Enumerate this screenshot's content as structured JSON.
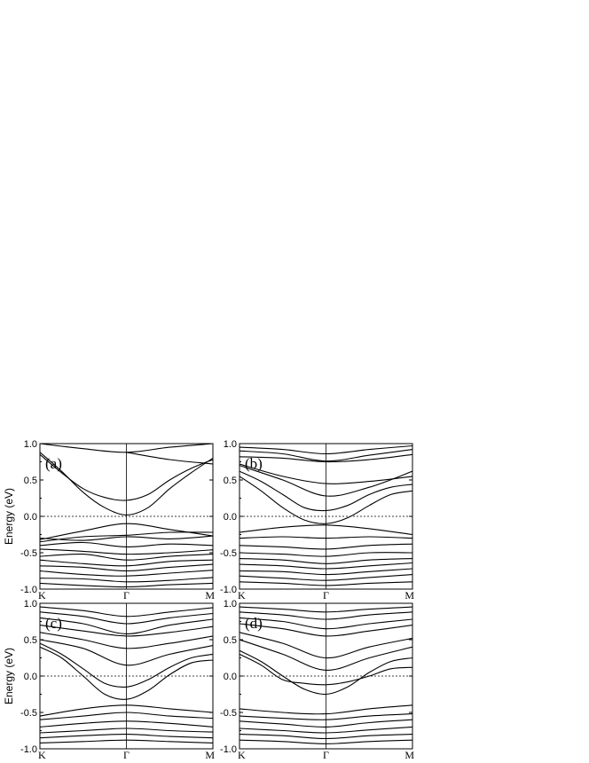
{
  "chart_data": [
    {
      "type": "line",
      "panel_label": "(a)",
      "ylabel": "Energy (eV)",
      "ylim": [
        -1.0,
        1.0
      ],
      "yticks": [
        "-1.0",
        "-0.5",
        "0.0",
        "0.5",
        "1.0"
      ],
      "xticks": [
        "K",
        "Γ",
        "M"
      ],
      "fermi_level": 0.0,
      "bands": [
        {
          "x": [
            0,
            0.25,
            0.5,
            0.75,
            1.0,
            1.25,
            1.5,
            1.75,
            2.0
          ],
          "y": [
            0.85,
            0.6,
            0.38,
            0.26,
            0.22,
            0.3,
            0.5,
            0.66,
            0.78
          ]
        },
        {
          "x": [
            0,
            0.25,
            0.5,
            0.75,
            1.0,
            1.25,
            1.5,
            1.75,
            2.0
          ],
          "y": [
            0.88,
            0.62,
            0.33,
            0.12,
            0.02,
            0.12,
            0.38,
            0.6,
            0.8
          ]
        },
        {
          "x": [
            0,
            0.5,
            1.0,
            1.5,
            2.0
          ],
          "y": [
            1.0,
            0.93,
            0.88,
            0.95,
            1.0
          ]
        },
        {
          "x": [
            1.0,
            1.5,
            2.0
          ],
          "y": [
            0.88,
            0.78,
            0.72
          ]
        },
        {
          "x": [
            0,
            0.5,
            1.0,
            1.5,
            2.0
          ],
          "y": [
            -0.32,
            -0.2,
            -0.1,
            -0.18,
            -0.27
          ]
        },
        {
          "x": [
            0,
            0.5,
            1.0,
            1.5,
            2.0
          ],
          "y": [
            -0.35,
            -0.28,
            -0.26,
            -0.22,
            -0.22
          ]
        },
        {
          "x": [
            0,
            0.5,
            1.0,
            1.5,
            2.0
          ],
          "y": [
            -0.3,
            -0.33,
            -0.28,
            -0.31,
            -0.27
          ]
        },
        {
          "x": [
            0,
            0.5,
            1.0,
            1.5,
            2.0
          ],
          "y": [
            -0.4,
            -0.36,
            -0.42,
            -0.38,
            -0.4
          ]
        },
        {
          "x": [
            0,
            0.5,
            1.0,
            1.5,
            2.0
          ],
          "y": [
            -0.45,
            -0.48,
            -0.52,
            -0.5,
            -0.46
          ]
        },
        {
          "x": [
            0,
            0.5,
            1.0,
            1.5,
            2.0
          ],
          "y": [
            -0.55,
            -0.52,
            -0.6,
            -0.55,
            -0.52
          ]
        },
        {
          "x": [
            0,
            0.5,
            1.0,
            1.5,
            2.0
          ],
          "y": [
            -0.6,
            -0.65,
            -0.68,
            -0.62,
            -0.6
          ]
        },
        {
          "x": [
            0,
            0.5,
            1.0,
            1.5,
            2.0
          ],
          "y": [
            -0.68,
            -0.7,
            -0.75,
            -0.7,
            -0.66
          ]
        },
        {
          "x": [
            0,
            0.5,
            1.0,
            1.5,
            2.0
          ],
          "y": [
            -0.75,
            -0.8,
            -0.82,
            -0.78,
            -0.74
          ]
        },
        {
          "x": [
            0,
            0.5,
            1.0,
            1.5,
            2.0
          ],
          "y": [
            -0.85,
            -0.86,
            -0.9,
            -0.88,
            -0.84
          ]
        },
        {
          "x": [
            0,
            0.5,
            1.0,
            1.5,
            2.0
          ],
          "y": [
            -0.92,
            -0.95,
            -0.97,
            -0.94,
            -0.92
          ]
        }
      ]
    },
    {
      "type": "line",
      "panel_label": "(b)",
      "ylabel": "",
      "ylim": [
        -1.0,
        1.0
      ],
      "yticks": [
        "-1.0",
        "-0.5",
        "0.0",
        "0.5",
        "1.0"
      ],
      "xticks": [
        "K",
        "Γ",
        "M"
      ],
      "fermi_level": 0.0,
      "bands": [
        {
          "x": [
            0,
            0.25,
            0.5,
            0.75,
            1.0,
            1.25,
            1.5,
            1.75,
            2.0
          ],
          "y": [
            0.62,
            0.48,
            0.3,
            0.12,
            0.08,
            0.15,
            0.3,
            0.4,
            0.44
          ]
        },
        {
          "x": [
            0,
            0.25,
            0.5,
            0.75,
            1.0,
            1.25,
            1.5,
            1.75,
            2.0
          ],
          "y": [
            0.55,
            0.35,
            0.12,
            -0.05,
            -0.1,
            -0.02,
            0.15,
            0.3,
            0.35
          ]
        },
        {
          "x": [
            0,
            0.5,
            1.0,
            1.5,
            2.0
          ],
          "y": [
            0.7,
            0.5,
            0.28,
            0.4,
            0.62
          ]
        },
        {
          "x": [
            0,
            0.5,
            1.0,
            1.5,
            2.0
          ],
          "y": [
            0.72,
            0.55,
            0.45,
            0.48,
            0.55
          ]
        },
        {
          "x": [
            0,
            0.5,
            1.0,
            1.5,
            2.0
          ],
          "y": [
            0.82,
            0.8,
            0.75,
            0.78,
            0.85
          ]
        },
        {
          "x": [
            0,
            0.5,
            1.0,
            1.5,
            2.0
          ],
          "y": [
            0.9,
            0.86,
            0.76,
            0.84,
            0.92
          ]
        },
        {
          "x": [
            0,
            0.5,
            1.0,
            1.5,
            2.0
          ],
          "y": [
            0.95,
            0.92,
            0.86,
            0.92,
            0.97
          ]
        },
        {
          "x": [
            0,
            0.5,
            1.0,
            1.5,
            2.0
          ],
          "y": [
            -0.22,
            -0.15,
            -0.12,
            -0.17,
            -0.25
          ]
        },
        {
          "x": [
            0,
            0.5,
            1.0,
            1.5,
            2.0
          ],
          "y": [
            -0.3,
            -0.28,
            -0.3,
            -0.28,
            -0.3
          ]
        },
        {
          "x": [
            0,
            0.5,
            1.0,
            1.5,
            2.0
          ],
          "y": [
            -0.4,
            -0.42,
            -0.45,
            -0.4,
            -0.38
          ]
        },
        {
          "x": [
            0,
            0.5,
            1.0,
            1.5,
            2.0
          ],
          "y": [
            -0.5,
            -0.52,
            -0.55,
            -0.5,
            -0.5
          ]
        },
        {
          "x": [
            0,
            0.5,
            1.0,
            1.5,
            2.0
          ],
          "y": [
            -0.58,
            -0.6,
            -0.65,
            -0.6,
            -0.58
          ]
        },
        {
          "x": [
            0,
            0.5,
            1.0,
            1.5,
            2.0
          ],
          "y": [
            -0.66,
            -0.68,
            -0.72,
            -0.68,
            -0.64
          ]
        },
        {
          "x": [
            0,
            0.5,
            1.0,
            1.5,
            2.0
          ],
          "y": [
            -0.75,
            -0.76,
            -0.8,
            -0.76,
            -0.72
          ]
        },
        {
          "x": [
            0,
            0.5,
            1.0,
            1.5,
            2.0
          ],
          "y": [
            -0.82,
            -0.85,
            -0.88,
            -0.84,
            -0.8
          ]
        },
        {
          "x": [
            0,
            0.5,
            1.0,
            1.5,
            2.0
          ],
          "y": [
            -0.9,
            -0.92,
            -0.95,
            -0.92,
            -0.9
          ]
        }
      ]
    },
    {
      "type": "line",
      "panel_label": "(c)",
      "ylabel": "Energy (eV)",
      "ylim": [
        -1.0,
        1.0
      ],
      "yticks": [
        "-1.0",
        "-0.5",
        "0.0",
        "0.5",
        "1.0"
      ],
      "xticks": [
        "K",
        "Γ",
        "M"
      ],
      "fermi_level": 0.0,
      "bands": [
        {
          "x": [
            0,
            0.25,
            0.5,
            0.75,
            1.0,
            1.25,
            1.5,
            1.75,
            2.0
          ],
          "y": [
            0.45,
            0.3,
            0.1,
            -0.1,
            -0.15,
            -0.05,
            0.12,
            0.25,
            0.3
          ]
        },
        {
          "x": [
            0,
            0.25,
            0.5,
            0.75,
            1.0,
            1.25,
            1.5,
            1.75,
            2.0
          ],
          "y": [
            0.4,
            0.25,
            0.0,
            -0.25,
            -0.32,
            -0.2,
            0.02,
            0.18,
            0.22
          ]
        },
        {
          "x": [
            0,
            0.5,
            1.0,
            1.5,
            2.0
          ],
          "y": [
            0.5,
            0.38,
            0.15,
            0.3,
            0.42
          ]
        },
        {
          "x": [
            0,
            0.5,
            1.0,
            1.5,
            2.0
          ],
          "y": [
            0.6,
            0.5,
            0.38,
            0.45,
            0.55
          ]
        },
        {
          "x": [
            0,
            0.5,
            1.0,
            1.5,
            2.0
          ],
          "y": [
            0.7,
            0.62,
            0.55,
            0.6,
            0.68
          ]
        },
        {
          "x": [
            0,
            0.5,
            1.0,
            1.5,
            2.0
          ],
          "y": [
            0.8,
            0.72,
            0.58,
            0.7,
            0.78
          ]
        },
        {
          "x": [
            0,
            0.5,
            1.0,
            1.5,
            2.0
          ],
          "y": [
            0.88,
            0.82,
            0.72,
            0.8,
            0.86
          ]
        },
        {
          "x": [
            0,
            0.5,
            1.0,
            1.5,
            2.0
          ],
          "y": [
            0.95,
            0.9,
            0.82,
            0.88,
            0.94
          ]
        },
        {
          "x": [
            0,
            0.5,
            1.0,
            1.5,
            2.0
          ],
          "y": [
            -0.55,
            -0.45,
            -0.4,
            -0.45,
            -0.5
          ]
        },
        {
          "x": [
            0,
            0.5,
            1.0,
            1.5,
            2.0
          ],
          "y": [
            -0.6,
            -0.55,
            -0.5,
            -0.55,
            -0.58
          ]
        },
        {
          "x": [
            0,
            0.5,
            1.0,
            1.5,
            2.0
          ],
          "y": [
            -0.7,
            -0.65,
            -0.62,
            -0.65,
            -0.7
          ]
        },
        {
          "x": [
            0,
            0.5,
            1.0,
            1.5,
            2.0
          ],
          "y": [
            -0.78,
            -0.75,
            -0.72,
            -0.75,
            -0.77
          ]
        },
        {
          "x": [
            0,
            0.5,
            1.0,
            1.5,
            2.0
          ],
          "y": [
            -0.85,
            -0.82,
            -0.8,
            -0.83,
            -0.85
          ]
        },
        {
          "x": [
            0,
            0.5,
            1.0,
            1.5,
            2.0
          ],
          "y": [
            -0.92,
            -0.9,
            -0.88,
            -0.9,
            -0.92
          ]
        }
      ]
    },
    {
      "type": "line",
      "panel_label": "(d)",
      "ylabel": "",
      "ylim": [
        -1.0,
        1.0
      ],
      "yticks": [
        "-1.0",
        "-0.5",
        "0.0",
        "0.5",
        "1.0"
      ],
      "xticks": [
        "K",
        "Γ",
        "M"
      ],
      "fermi_level": 0.0,
      "bands": [
        {
          "x": [
            0,
            0.25,
            0.5,
            0.75,
            1.0,
            1.25,
            1.5,
            1.75,
            2.0
          ],
          "y": [
            0.35,
            0.2,
            0.0,
            -0.18,
            -0.25,
            -0.15,
            0.05,
            0.2,
            0.25
          ]
        },
        {
          "x": [
            0,
            0.25,
            0.5,
            0.75,
            1.0,
            1.25,
            1.5,
            1.75,
            2.0
          ],
          "y": [
            0.3,
            0.15,
            -0.05,
            -0.1,
            -0.12,
            -0.08,
            0.0,
            0.1,
            0.12
          ]
        },
        {
          "x": [
            0,
            0.5,
            1.0,
            1.5,
            2.0
          ],
          "y": [
            0.5,
            0.3,
            0.08,
            0.25,
            0.4
          ]
        },
        {
          "x": [
            0,
            0.5,
            1.0,
            1.5,
            2.0
          ],
          "y": [
            0.6,
            0.45,
            0.25,
            0.4,
            0.52
          ]
        },
        {
          "x": [
            0,
            0.5,
            1.0,
            1.5,
            2.0
          ],
          "y": [
            0.72,
            0.65,
            0.55,
            0.62,
            0.7
          ]
        },
        {
          "x": [
            0,
            0.5,
            1.0,
            1.5,
            2.0
          ],
          "y": [
            0.8,
            0.75,
            0.65,
            0.72,
            0.78
          ]
        },
        {
          "x": [
            0,
            0.5,
            1.0,
            1.5,
            2.0
          ],
          "y": [
            0.88,
            0.84,
            0.78,
            0.84,
            0.88
          ]
        },
        {
          "x": [
            0,
            0.5,
            1.0,
            1.5,
            2.0
          ],
          "y": [
            0.95,
            0.92,
            0.88,
            0.92,
            0.95
          ]
        },
        {
          "x": [
            0,
            0.5,
            1.0,
            1.5,
            2.0
          ],
          "y": [
            -0.45,
            -0.5,
            -0.52,
            -0.45,
            -0.4
          ]
        },
        {
          "x": [
            0,
            0.5,
            1.0,
            1.5,
            2.0
          ],
          "y": [
            -0.55,
            -0.58,
            -0.6,
            -0.55,
            -0.52
          ]
        },
        {
          "x": [
            0,
            0.5,
            1.0,
            1.5,
            2.0
          ],
          "y": [
            -0.62,
            -0.66,
            -0.7,
            -0.64,
            -0.6
          ]
        },
        {
          "x": [
            0,
            0.5,
            1.0,
            1.5,
            2.0
          ],
          "y": [
            -0.72,
            -0.75,
            -0.78,
            -0.74,
            -0.7
          ]
        },
        {
          "x": [
            0,
            0.5,
            1.0,
            1.5,
            2.0
          ],
          "y": [
            -0.8,
            -0.82,
            -0.86,
            -0.82,
            -0.8
          ]
        },
        {
          "x": [
            0,
            0.5,
            1.0,
            1.5,
            2.0
          ],
          "y": [
            -0.88,
            -0.9,
            -0.93,
            -0.9,
            -0.88
          ]
        }
      ]
    }
  ]
}
